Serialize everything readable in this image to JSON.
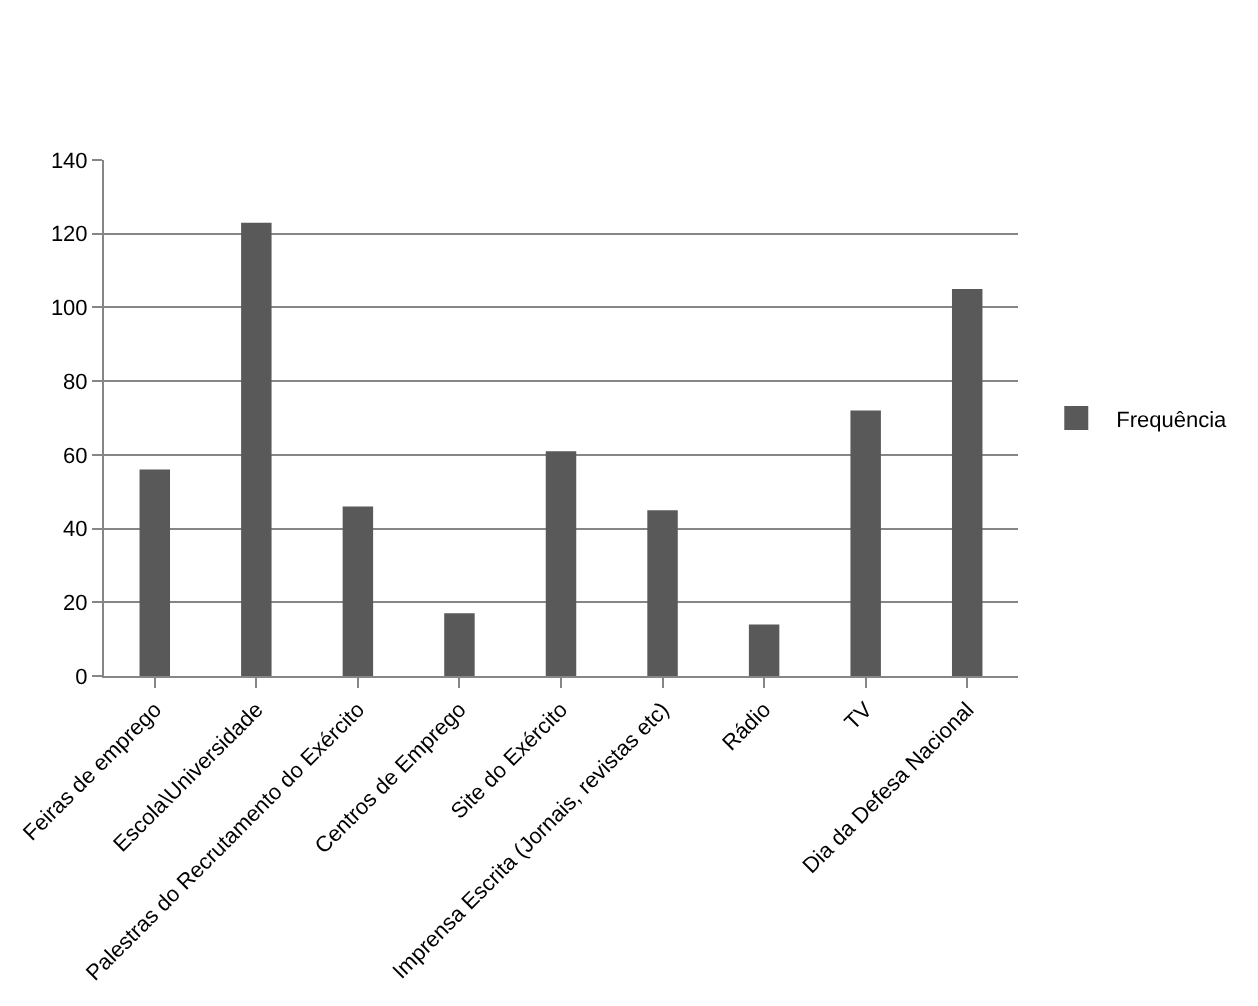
{
  "chart_data": {
    "type": "bar",
    "categories": [
      "Feiras de emprego",
      "Escola\\Universidade",
      "Palestras do Recrutamento do Exército",
      "Centros de Emprego",
      "Site do Exército",
      "Imprensa Escrita (Jornais, revistas etc)",
      "Rádio",
      "TV",
      "Dia da Defesa Nacional"
    ],
    "series": [
      {
        "name": "Frequência",
        "color": "#595959",
        "values": [
          56,
          123,
          46,
          17,
          61,
          45,
          14,
          72,
          105
        ]
      }
    ],
    "ylim": [
      0,
      140
    ],
    "yticks": [
      0,
      20,
      40,
      60,
      80,
      100,
      120,
      140
    ],
    "grid": "y",
    "legend": "right"
  }
}
